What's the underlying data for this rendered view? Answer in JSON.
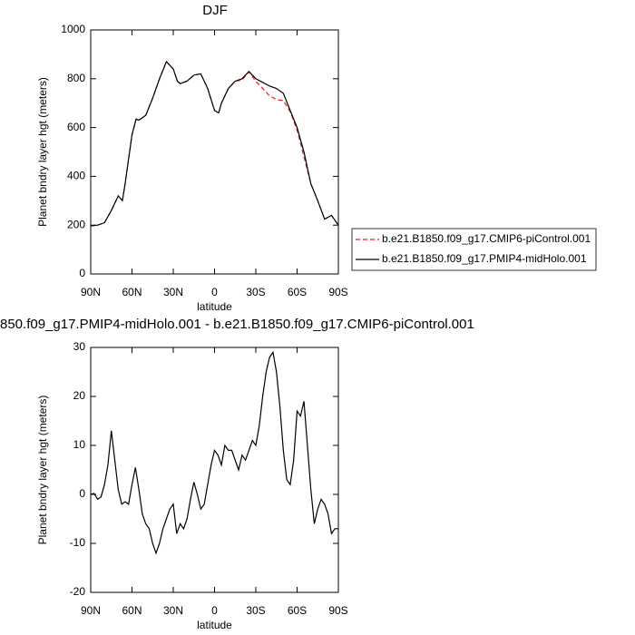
{
  "chart_data": [
    {
      "type": "line",
      "title": "DJF",
      "x_label": "latitude",
      "y_label": "Planet bndry layer hgt (meters)",
      "xlim": [
        90,
        -90
      ],
      "xticks": [
        {
          "value": 90,
          "label": "90N"
        },
        {
          "value": 60,
          "label": "60N"
        },
        {
          "value": 30,
          "label": "30N"
        },
        0,
        {
          "value": -30,
          "label": "30S"
        },
        {
          "value": -60,
          "label": "60S"
        },
        {
          "value": -90,
          "label": "90S"
        }
      ],
      "ylim": [
        0,
        1000
      ],
      "yticks": [
        0,
        200,
        400,
        600,
        800,
        1000
      ],
      "x": [
        90,
        85,
        80,
        75,
        70,
        67,
        65,
        60,
        57,
        55,
        50,
        45,
        40,
        35,
        30,
        27,
        25,
        20,
        15,
        10,
        5,
        0,
        -3,
        -5,
        -10,
        -15,
        -20,
        -25,
        -30,
        -35,
        -40,
        -45,
        -50,
        -55,
        -60,
        -65,
        -70,
        -75,
        -80,
        -85,
        -90
      ],
      "series": [
        {
          "name": "b.e21.B1850.f09_g17.CMIP6-piControl.001",
          "color": "#e0201b",
          "dash": true,
          "values": [
            197,
            200,
            210,
            260,
            320,
            300,
            370,
            570,
            635,
            630,
            650,
            720,
            800,
            870,
            840,
            790,
            780,
            790,
            815,
            820,
            760,
            670,
            660,
            700,
            760,
            790,
            795,
            828,
            790,
            760,
            730,
            715,
            710,
            665,
            590,
            480,
            370,
            300,
            225,
            240,
            200
          ]
        },
        {
          "name": "b.e21.B1850.f09_g17.PMIP4-midHolo.001",
          "color": "#000000",
          "dash": false,
          "values": [
            197,
            200,
            210,
            260,
            320,
            300,
            370,
            570,
            635,
            630,
            650,
            720,
            800,
            870,
            840,
            790,
            780,
            790,
            815,
            820,
            760,
            670,
            660,
            700,
            760,
            790,
            800,
            830,
            800,
            785,
            770,
            760,
            740,
            670,
            600,
            500,
            370,
            300,
            225,
            240,
            200
          ]
        }
      ]
    },
    {
      "type": "line",
      "title": "850.f09_g17.PMIP4-midHolo.001 - b.e21.B1850.f09_g17.CMIP6-piControl.001",
      "x_label": "latitude",
      "y_label": "Planet bndry layer hgt (meters)",
      "xlim": [
        90,
        -90
      ],
      "xticks": [
        {
          "value": 90,
          "label": "90N"
        },
        {
          "value": 60,
          "label": "60N"
        },
        {
          "value": 30,
          "label": "30N"
        },
        0,
        {
          "value": -30,
          "label": "30S"
        },
        {
          "value": -60,
          "label": "60S"
        },
        {
          "value": -90,
          "label": "90S"
        }
      ],
      "ylim": [
        -20,
        30
      ],
      "yticks": [
        -20,
        -10,
        0,
        10,
        20,
        30
      ],
      "x": [
        90,
        87.5,
        85,
        82.5,
        80,
        77.5,
        75,
        72.5,
        70,
        67.5,
        65,
        62.5,
        60,
        57.5,
        55,
        52.5,
        50,
        47.5,
        45,
        42.5,
        40,
        37.5,
        35,
        32.5,
        30,
        27.5,
        25,
        22.5,
        20,
        17.5,
        15,
        12.5,
        10,
        7.5,
        5,
        2.5,
        0,
        -2.5,
        -5,
        -7.5,
        -10,
        -12.5,
        -15,
        -17.5,
        -20,
        -22.5,
        -25,
        -27.5,
        -30,
        -32.5,
        -35,
        -37.5,
        -40,
        -42.5,
        -45,
        -47.5,
        -50,
        -52.5,
        -55,
        -57.5,
        -60,
        -62.5,
        -65,
        -67.5,
        -70,
        -72.5,
        -75,
        -77.5,
        -80,
        -82.5,
        -85,
        -87.5,
        -90
      ],
      "series": [
        {
          "color": "#000000",
          "dash": false,
          "values": [
            0,
            0.2,
            -1,
            -0.5,
            2,
            6,
            13,
            7,
            1,
            -2,
            -1.5,
            -2,
            2,
            5.5,
            1,
            -4,
            -6,
            -7,
            -10,
            -12,
            -10,
            -7,
            -5,
            -3,
            -2,
            -8,
            -6,
            -7,
            -5,
            -1,
            2.5,
            0,
            -3,
            -2,
            2,
            6,
            9,
            8,
            6,
            10,
            9,
            9,
            7,
            5,
            8,
            7,
            9,
            11,
            10,
            14,
            20,
            25,
            28,
            29,
            25,
            18,
            9,
            3,
            2,
            7,
            17,
            16,
            19,
            10,
            1,
            -6,
            -3,
            -1,
            -2,
            -4,
            -8,
            -7,
            -7
          ]
        }
      ]
    }
  ]
}
